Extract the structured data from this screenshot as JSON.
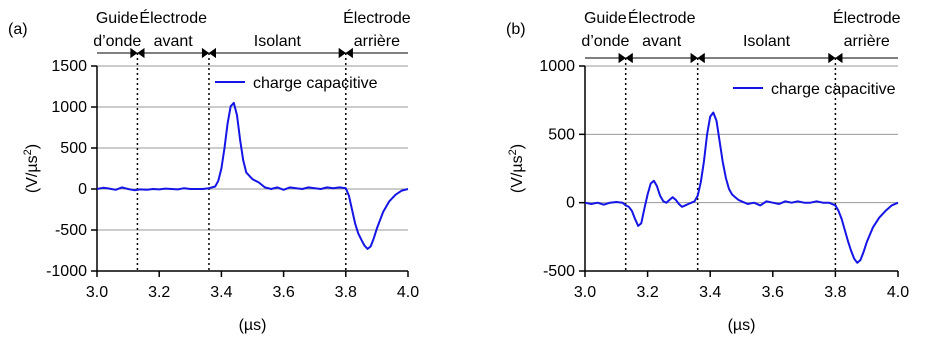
{
  "chart_data": [
    {
      "panel": "(a)",
      "type": "line",
      "xlabel": "(µs)",
      "ylabel_base": "(V/µs",
      "ylabel_sup": "2",
      "ylabel_close": ")",
      "xlim": [
        3.0,
        4.0
      ],
      "ylim": [
        -1000,
        1500
      ],
      "xticks": [
        "3.0",
        "3.2",
        "3.4",
        "3.6",
        "3.8",
        "4.0"
      ],
      "xtick_values": [
        3.0,
        3.2,
        3.4,
        3.6,
        3.8,
        4.0
      ],
      "yticks": [
        "-1000",
        "-500",
        "0",
        "500",
        "1000",
        "1500"
      ],
      "ytick_values": [
        -1000,
        -500,
        0,
        500,
        1000,
        1500
      ],
      "grid": "horizontal",
      "legend_position": "top-right",
      "regions": [
        {
          "label1": "Guide",
          "label2": "d’onde",
          "x_from": 3.0,
          "x_to": 3.13
        },
        {
          "label1": "Électrode",
          "label2": "avant",
          "x_from": 3.13,
          "x_to": 3.36
        },
        {
          "label1": "Isolant",
          "label2": "",
          "x_from": 3.36,
          "x_to": 3.8
        },
        {
          "label1": "Électrode",
          "label2": "arrière",
          "x_from": 3.8,
          "x_to": 4.0
        }
      ],
      "boundaries": [
        3.13,
        3.36,
        3.8
      ],
      "series": [
        {
          "name": "charge capacitive",
          "color": "#1515e6",
          "x": [
            3.0,
            3.02,
            3.04,
            3.06,
            3.08,
            3.1,
            3.12,
            3.14,
            3.16,
            3.18,
            3.2,
            3.22,
            3.24,
            3.26,
            3.28,
            3.3,
            3.32,
            3.34,
            3.36,
            3.38,
            3.39,
            3.4,
            3.41,
            3.42,
            3.43,
            3.44,
            3.45,
            3.46,
            3.47,
            3.48,
            3.5,
            3.52,
            3.54,
            3.56,
            3.58,
            3.6,
            3.62,
            3.64,
            3.66,
            3.68,
            3.7,
            3.72,
            3.74,
            3.76,
            3.78,
            3.8,
            3.81,
            3.82,
            3.83,
            3.84,
            3.85,
            3.86,
            3.87,
            3.88,
            3.89,
            3.9,
            3.92,
            3.94,
            3.96,
            3.98,
            4.0
          ],
          "y": [
            0,
            15,
            5,
            -10,
            20,
            0,
            -15,
            -5,
            -10,
            0,
            -5,
            5,
            0,
            -5,
            10,
            0,
            0,
            0,
            10,
            30,
            100,
            250,
            500,
            800,
            1010,
            1050,
            900,
            600,
            350,
            200,
            120,
            80,
            20,
            0,
            20,
            -10,
            20,
            10,
            0,
            20,
            10,
            0,
            20,
            10,
            20,
            10,
            -80,
            -250,
            -420,
            -540,
            -620,
            -690,
            -730,
            -700,
            -600,
            -480,
            -280,
            -150,
            -70,
            -20,
            0
          ]
        }
      ]
    },
    {
      "panel": "(b)",
      "type": "line",
      "xlabel": "(µs)",
      "ylabel_base": "(V/µs",
      "ylabel_sup": "2",
      "ylabel_close": ")",
      "xlim": [
        3.0,
        4.0
      ],
      "ylim": [
        -500,
        1000
      ],
      "xticks": [
        "3.0",
        "3.2",
        "3.4",
        "3.6",
        "3.8",
        "4.0"
      ],
      "xtick_values": [
        3.0,
        3.2,
        3.4,
        3.6,
        3.8,
        4.0
      ],
      "yticks": [
        "-500",
        "0",
        "500",
        "1000"
      ],
      "ytick_values": [
        -500,
        0,
        500,
        1000
      ],
      "grid": "horizontal",
      "legend_position": "top-right",
      "regions": [
        {
          "label1": "Guide",
          "label2": "d’onde",
          "x_from": 3.0,
          "x_to": 3.13
        },
        {
          "label1": "Électrode",
          "label2": "avant",
          "x_from": 3.13,
          "x_to": 3.36
        },
        {
          "label1": "Isolant",
          "label2": "",
          "x_from": 3.36,
          "x_to": 3.8
        },
        {
          "label1": "Électrode",
          "label2": "arrière",
          "x_from": 3.8,
          "x_to": 4.0
        }
      ],
      "boundaries": [
        3.13,
        3.36,
        3.8
      ],
      "series": [
        {
          "name": "charge capacitive",
          "color": "#1515e6",
          "x": [
            3.0,
            3.02,
            3.04,
            3.06,
            3.08,
            3.1,
            3.12,
            3.13,
            3.14,
            3.15,
            3.16,
            3.17,
            3.18,
            3.19,
            3.2,
            3.21,
            3.22,
            3.23,
            3.24,
            3.25,
            3.26,
            3.27,
            3.28,
            3.29,
            3.3,
            3.31,
            3.32,
            3.33,
            3.34,
            3.35,
            3.36,
            3.37,
            3.38,
            3.39,
            3.4,
            3.41,
            3.42,
            3.43,
            3.44,
            3.45,
            3.46,
            3.47,
            3.48,
            3.49,
            3.5,
            3.52,
            3.54,
            3.56,
            3.58,
            3.6,
            3.62,
            3.64,
            3.66,
            3.68,
            3.7,
            3.72,
            3.74,
            3.76,
            3.78,
            3.8,
            3.81,
            3.82,
            3.83,
            3.84,
            3.85,
            3.86,
            3.87,
            3.88,
            3.89,
            3.9,
            3.92,
            3.94,
            3.96,
            3.98,
            4.0
          ],
          "y": [
            0,
            -10,
            0,
            -15,
            0,
            5,
            0,
            -20,
            -30,
            -60,
            -120,
            -170,
            -150,
            -40,
            60,
            140,
            160,
            120,
            50,
            10,
            0,
            20,
            40,
            20,
            -10,
            -30,
            -20,
            -10,
            0,
            10,
            50,
            150,
            300,
            500,
            630,
            660,
            600,
            450,
            300,
            180,
            100,
            60,
            40,
            20,
            10,
            -10,
            0,
            -20,
            10,
            0,
            -10,
            10,
            0,
            10,
            0,
            0,
            10,
            0,
            0,
            -20,
            -60,
            -120,
            -200,
            -280,
            -350,
            -410,
            -440,
            -420,
            -360,
            -290,
            -180,
            -110,
            -60,
            -20,
            0
          ]
        }
      ]
    }
  ]
}
